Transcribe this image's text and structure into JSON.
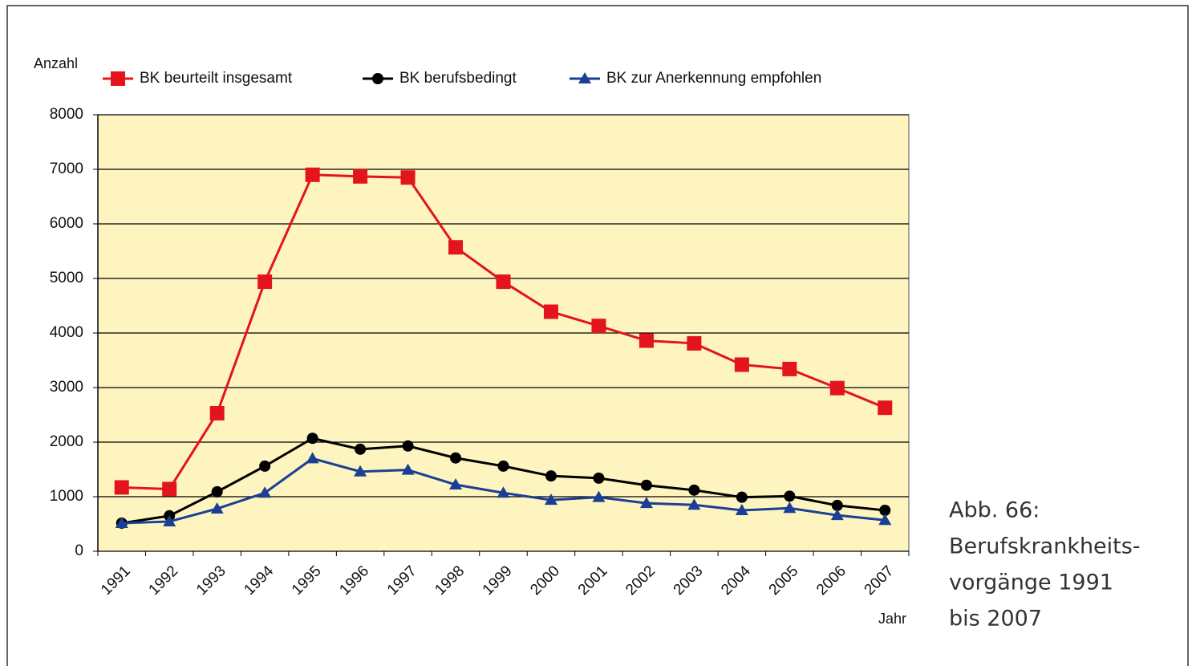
{
  "chart_data": {
    "type": "line",
    "y_label": "Anzahl",
    "x_label": "Jahr",
    "caption": [
      "Abb. 66:",
      "Berufskrankheits-",
      "vorgänge 1991",
      "bis 2007"
    ],
    "categories": [
      "1991",
      "1992",
      "1993",
      "1994",
      "1995",
      "1996",
      "1997",
      "1998",
      "1999",
      "2000",
      "2001",
      "2002",
      "2003",
      "2004",
      "2005",
      "2006",
      "2007"
    ],
    "series": [
      {
        "name": "BK beurteilt insgesamt",
        "color": "#e3141b",
        "marker": "square",
        "values": [
          1170,
          1140,
          2530,
          4940,
          6900,
          6870,
          6850,
          5570,
          4940,
          4390,
          4130,
          3860,
          3810,
          3420,
          3340,
          2990,
          2630
        ]
      },
      {
        "name": "BK berufsbedingt",
        "color": "#000000",
        "marker": "circle",
        "values": [
          515,
          650,
          1090,
          1560,
          2070,
          1870,
          1930,
          1710,
          1560,
          1380,
          1340,
          1210,
          1120,
          990,
          1010,
          840,
          750
        ]
      },
      {
        "name": "BK zur Anerkennung empfohlen",
        "color": "#1b3f94",
        "marker": "triangle",
        "values": [
          515,
          545,
          780,
          1070,
          1700,
          1460,
          1490,
          1220,
          1070,
          940,
          990,
          880,
          850,
          750,
          790,
          660,
          570
        ]
      }
    ],
    "ylim": [
      0,
      8000
    ],
    "yticks": [
      0,
      1000,
      2000,
      3000,
      4000,
      5000,
      6000,
      7000,
      8000
    ],
    "grid": true,
    "plot_background": "#fdf4c0",
    "legend": "top"
  }
}
